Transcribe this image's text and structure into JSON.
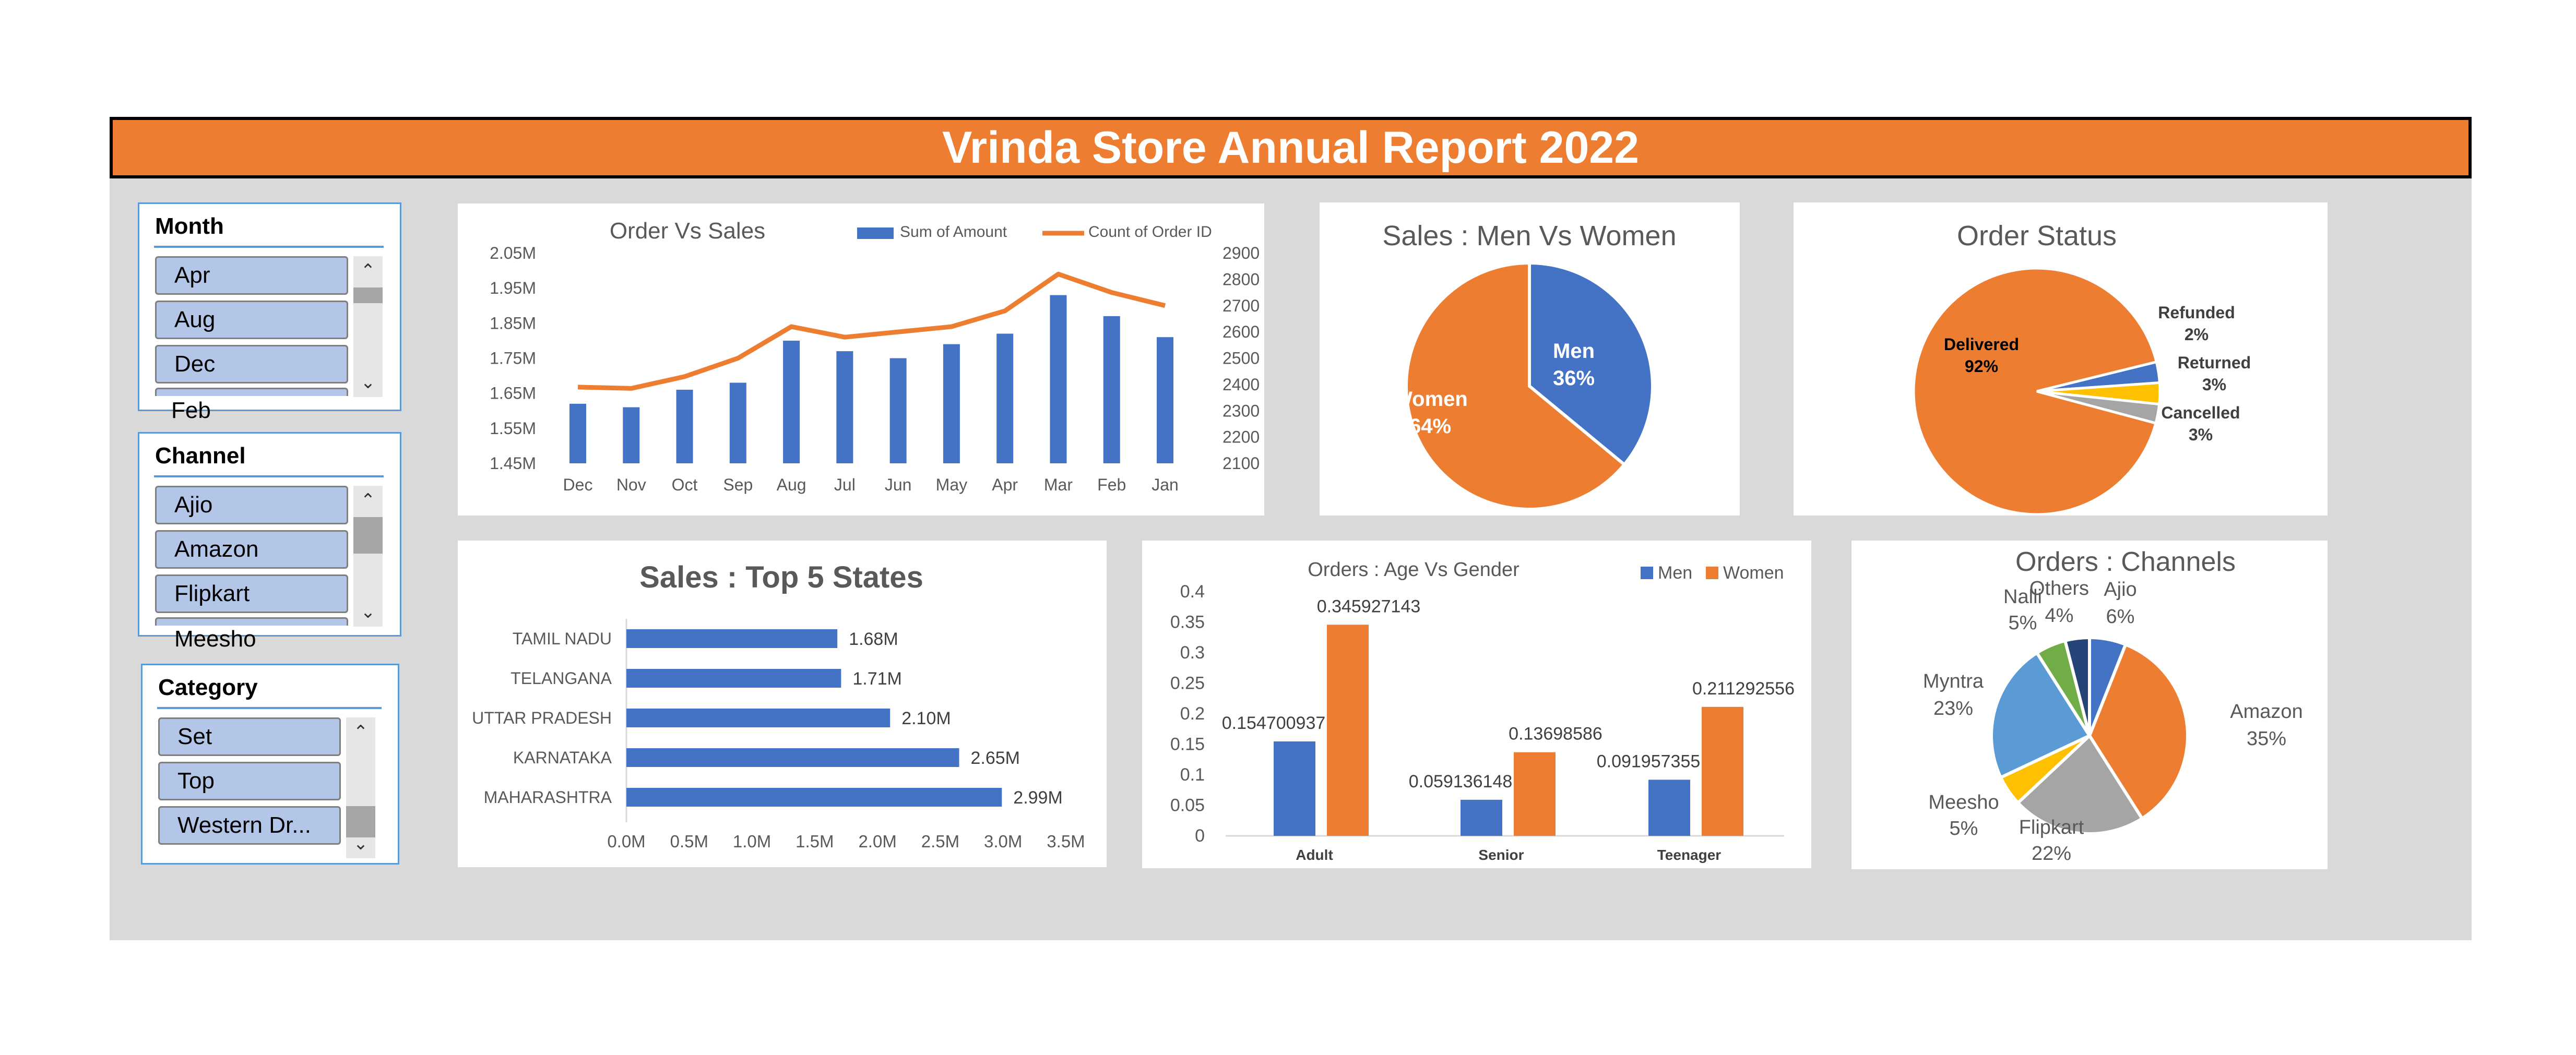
{
  "report_title": "Vrinda Store Annual Report 2022",
  "colors": {
    "orange": "#ed7d31",
    "blue": "#4472c4",
    "gray": "#a5a5a5",
    "yellow": "#ffc000",
    "lightblue": "#5b9bd5",
    "green": "#70ad47",
    "navy": "#264478",
    "panel": "#d9d9d9"
  },
  "slicers": {
    "month": {
      "title": "Month",
      "items": [
        "Apr",
        "Aug",
        "Dec"
      ],
      "overflow_item": "Feb",
      "icons": [
        "chevron-up-icon",
        "chevron-down-icon"
      ]
    },
    "channel": {
      "title": "Channel",
      "items": [
        "Ajio",
        "Amazon",
        "Flipkart"
      ],
      "overflow_item": "Meesho",
      "icons": [
        "chevron-up-icon",
        "chevron-down-icon"
      ]
    },
    "category": {
      "title": "Category",
      "items": [
        "Set",
        "Top",
        "Western Dr..."
      ],
      "icons": [
        "chevron-up-icon",
        "chevron-down-icon"
      ]
    }
  },
  "chart_data": [
    {
      "id": "order_vs_sales",
      "type": "bar+line",
      "title": "Order Vs Sales",
      "categories": [
        "Dec",
        "Nov",
        "Oct",
        "Sep",
        "Aug",
        "Jul",
        "Jun",
        "May",
        "Apr",
        "Mar",
        "Feb",
        "Jan"
      ],
      "series": [
        {
          "name": "Sum of Amount",
          "type": "bar",
          "axis": "left",
          "values": [
            1.62,
            1.61,
            1.66,
            1.68,
            1.8,
            1.77,
            1.75,
            1.79,
            1.82,
            1.93,
            1.87,
            1.81
          ]
        },
        {
          "name": "Count of Order ID",
          "type": "line",
          "axis": "right",
          "values": [
            2390,
            2385,
            2430,
            2500,
            2620,
            2580,
            2600,
            2620,
            2680,
            2820,
            2750,
            2700
          ]
        }
      ],
      "y_left_ticks": [
        "2.05M",
        "1.95M",
        "1.85M",
        "1.75M",
        "1.65M",
        "1.55M",
        "1.45M"
      ],
      "y_left_range": [
        1.45,
        2.05
      ],
      "y_right_ticks": [
        "2900",
        "2800",
        "2700",
        "2600",
        "2500",
        "2400",
        "2300",
        "2200",
        "2100"
      ],
      "y_right_range": [
        2100,
        2900
      ],
      "legend": "top-right"
    },
    {
      "id": "sales_men_women",
      "type": "pie",
      "title": "Sales : Men Vs Women",
      "slices": [
        {
          "label": "Men",
          "value": 36,
          "pct": "36%",
          "color": "#4472c4"
        },
        {
          "label": "Women",
          "value": 64,
          "pct": "64%",
          "color": "#ed7d31"
        }
      ]
    },
    {
      "id": "order_status",
      "type": "pie",
      "title": "Order Status",
      "slices": [
        {
          "label": "Delivered",
          "value": 92,
          "pct": "92%",
          "color": "#ed7d31"
        },
        {
          "label": "Refunded",
          "value": 2,
          "pct": "2%",
          "color": "#a5a5a5"
        },
        {
          "label": "Returned",
          "value": 3,
          "pct": "3%",
          "color": "#ffc000"
        },
        {
          "label": "Cancelled",
          "value": 3,
          "pct": "3%",
          "color": "#4472c4"
        }
      ]
    },
    {
      "id": "top5_states",
      "type": "bar",
      "orientation": "horizontal",
      "title": "Sales : Top 5 States",
      "categories": [
        "TAMIL NADU",
        "TELANGANA",
        "UTTAR PRADESH",
        "KARNATAKA",
        "MAHARASHTRA"
      ],
      "values": [
        1.68,
        1.71,
        2.1,
        2.65,
        2.99
      ],
      "value_labels": [
        "1.68M",
        "1.71M",
        "2.10M",
        "2.65M",
        "2.99M"
      ],
      "x_ticks": [
        "0.0M",
        "0.5M",
        "1.0M",
        "1.5M",
        "2.0M",
        "2.5M",
        "3.0M",
        "3.5M"
      ],
      "x_range": [
        0,
        3.5
      ]
    },
    {
      "id": "age_vs_gender",
      "type": "bar",
      "title": "Orders : Age Vs Gender",
      "categories": [
        "Adult",
        "Senior",
        "Teenager"
      ],
      "series": [
        {
          "name": "Men",
          "color": "#4472c4",
          "values": [
            0.154700937,
            0.059136148,
            0.091957355
          ],
          "labels": [
            "0.154700937",
            "0.059136148",
            "0.091957355"
          ]
        },
        {
          "name": "Women",
          "color": "#ed7d31",
          "values": [
            0.345927143,
            0.13698586,
            0.211292556
          ],
          "labels": [
            "0.345927143",
            "0.13698586",
            "0.211292556"
          ]
        }
      ],
      "y_ticks": [
        "0.4",
        "0.35",
        "0.3",
        "0.25",
        "0.2",
        "0.15",
        "0.1",
        "0.05",
        "0"
      ],
      "y_range": [
        0,
        0.4
      ],
      "legend": "top-right"
    },
    {
      "id": "orders_channels",
      "type": "pie",
      "title": "Orders : Channels",
      "slices": [
        {
          "label": "Ajio",
          "value": 6,
          "pct": "6%",
          "color": "#4472c4"
        },
        {
          "label": "Amazon",
          "value": 35,
          "pct": "35%",
          "color": "#ed7d31"
        },
        {
          "label": "Flipkart",
          "value": 22,
          "pct": "22%",
          "color": "#a5a5a5"
        },
        {
          "label": "Meesho",
          "value": 5,
          "pct": "5%",
          "color": "#ffc000"
        },
        {
          "label": "Myntra",
          "value": 23,
          "pct": "23%",
          "color": "#5b9bd5"
        },
        {
          "label": "Nalli",
          "value": 5,
          "pct": "5%",
          "color": "#70ad47"
        },
        {
          "label": "Others",
          "value": 4,
          "pct": "4%",
          "color": "#264478"
        }
      ]
    }
  ]
}
